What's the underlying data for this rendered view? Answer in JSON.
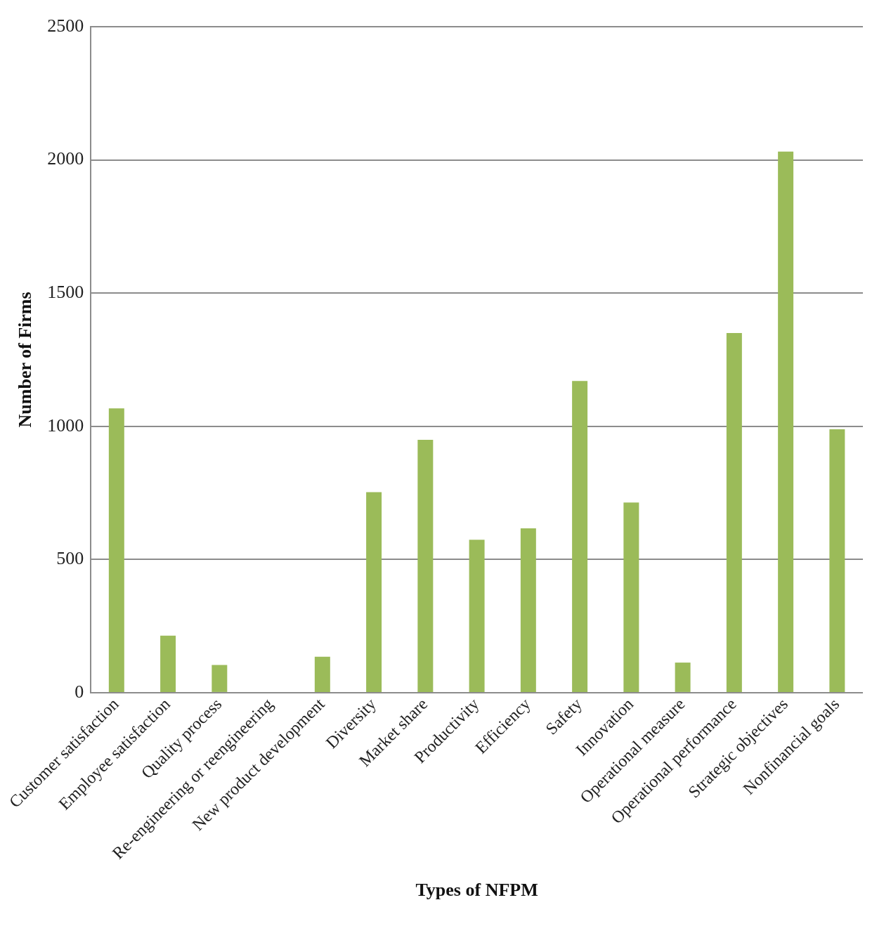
{
  "chart_data": {
    "type": "bar",
    "xlabel": "Types of NFPM",
    "ylabel": "Number of Firms",
    "categories": [
      "Customer satisfaction",
      "Employee satisfaction",
      "Quality process",
      "Re-engineering or reengineering",
      "New product development",
      "Diversity",
      "Market share",
      "Productivity",
      "Efficiency",
      "Safety",
      "Innovation",
      "Operational measure",
      "Operational performance",
      "Strategic objectives",
      "Nonfinancial goals"
    ],
    "values": [
      1067,
      214,
      104,
      0,
      135,
      753,
      949,
      574,
      617,
      1170,
      714,
      113,
      1350,
      2031,
      989
    ],
    "color": "#9bbb59",
    "ylim": [
      0,
      2500
    ],
    "yticks": [
      0,
      500,
      1000,
      1500,
      2000,
      2500
    ],
    "grid": "y"
  }
}
